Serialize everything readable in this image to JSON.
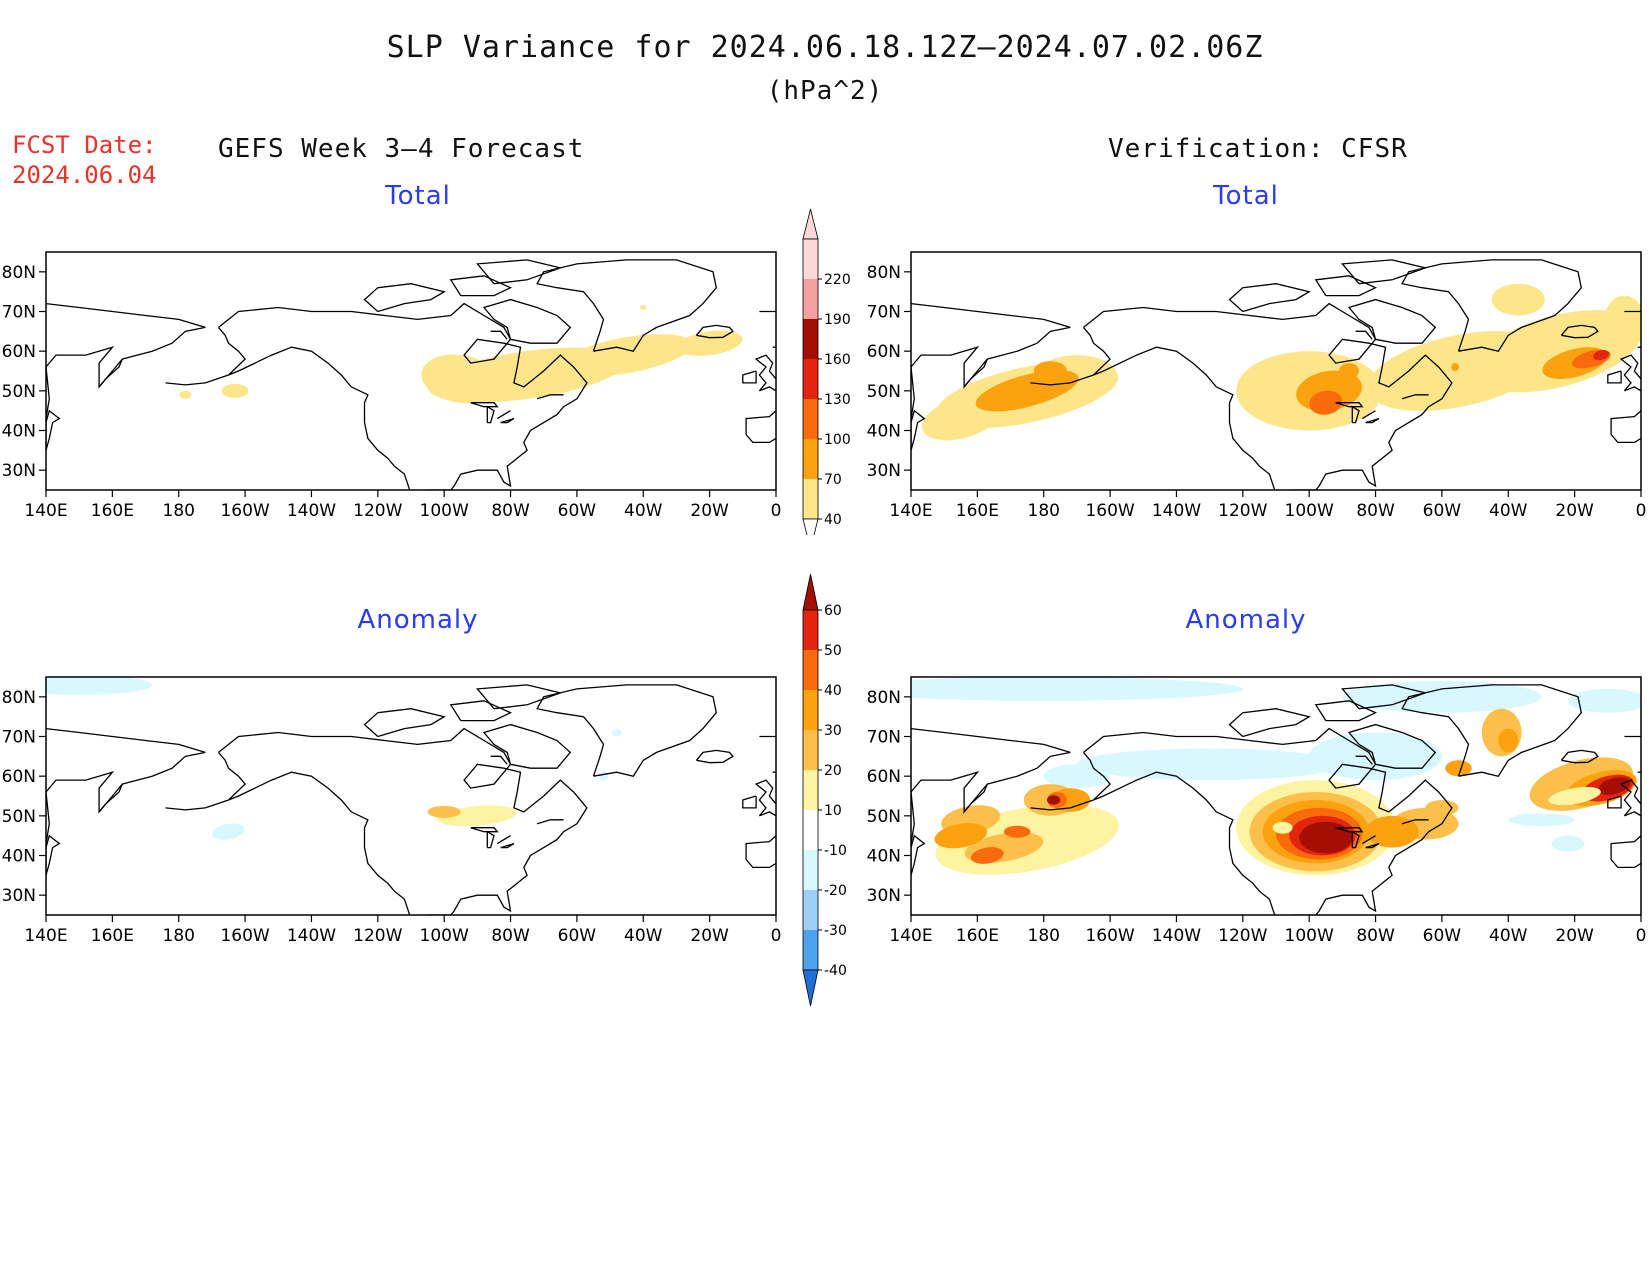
{
  "header": {
    "title": "SLP Variance for 2024.06.18.12Z–2024.07.02.06Z",
    "units": "(hPa^2)",
    "fcst_label": "FCST Date:",
    "fcst_date": "2024.06.04",
    "left_heading": "GEFS Week 3–4 Forecast",
    "right_heading": "Verification: CFSR"
  },
  "panels": [
    {
      "id": "forecast-total",
      "subtitle": "Total"
    },
    {
      "id": "verification-total",
      "subtitle": "Total"
    },
    {
      "id": "forecast-anomaly",
      "subtitle": "Anomaly"
    },
    {
      "id": "verification-anomaly",
      "subtitle": "Anomaly"
    }
  ],
  "axes": {
    "lon_labels": [
      "140E",
      "160E",
      "180",
      "160W",
      "140W",
      "120W",
      "100W",
      "80W",
      "60W",
      "40W",
      "20W",
      "0"
    ],
    "lat_labels": [
      "80N",
      "70N",
      "60N",
      "50N",
      "40N",
      "30N"
    ]
  },
  "colorbars": {
    "total": {
      "levels": [
        "40",
        "70",
        "100",
        "130",
        "160",
        "190",
        "220"
      ],
      "colors": [
        "#fde68a",
        "#fca20f",
        "#f96a0c",
        "#e3250f",
        "#a50f03",
        "#f2a0a0",
        "#fcd8d8"
      ]
    },
    "anomaly": {
      "levels": [
        "60",
        "50",
        "40",
        "30",
        "20",
        "10",
        "-10",
        "-20",
        "-30",
        "-40"
      ],
      "colors": [
        "#a50f03",
        "#e3250f",
        "#f96a0c",
        "#fca20f",
        "#fcc04a",
        "#fef3a0",
        "#ffffff",
        "#d8f8ff",
        "#9ed0f5",
        "#4fa3ee",
        "#1f6fd8"
      ]
    }
  }
}
